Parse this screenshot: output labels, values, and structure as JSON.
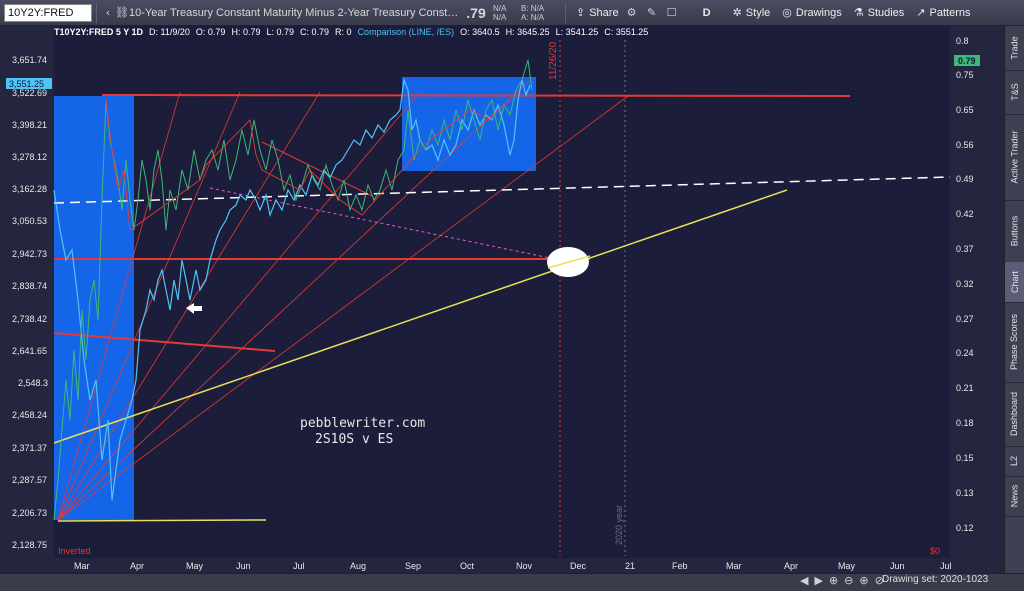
{
  "toolbar": {
    "symbol": "10Y2Y:FRED",
    "description": "10-Year Treasury Constant Maturity Minus 2-Year Treasury Constant M...",
    "last": ".79",
    "na1": "N/A",
    "na2": "N/A",
    "bid": "B: N/A",
    "ask": "A: N/A",
    "share": "Share",
    "period": "D",
    "style": "Style",
    "drawings": "Drawings",
    "studies": "Studies",
    "patterns": "Patterns"
  },
  "header": {
    "symbol": "T10Y2Y:FRED 5 Y 1D",
    "date": "D: 11/9/20",
    "open": "O: 0.79",
    "high": "H: 0.79",
    "low": "L: 0.79",
    "close": "C: 0.79",
    "r": "R: 0",
    "comparison": "Comparison (LINE, /ES)",
    "cmp_open": "O: 3640.5",
    "cmp_high": "H: 3645.25",
    "cmp_low": "L: 3541.25",
    "cmp_close": "C: 3551.25"
  },
  "colors": {
    "background": "#1b1d3a",
    "es_line": "#4fc3f7",
    "yield_line": "#3cb878",
    "box": "#1565e8",
    "trend_red": "#e53935",
    "trend_yellow": "#e8e05a",
    "dashed_white": "#ffffff"
  },
  "chart": {
    "left_axis": [
      "3,651.74",
      "3,522.69",
      "3,398.21",
      "3,278.12",
      "3,162.28",
      "3,050.53",
      "2,942.73",
      "2,838.74",
      "2,738.42",
      "2,641.65",
      "2,548.3",
      "2,458.24",
      "2,371.37",
      "2,287.57",
      "2,206.73",
      "2,128.75"
    ],
    "left_price_tag": "3,551.25",
    "right_axis": [
      "0.8",
      "0.75",
      "0.65",
      "0.56",
      "0.49",
      "0.42",
      "0.37",
      "0.32",
      "0.27",
      "0.24",
      "0.21",
      "0.18",
      "0.15",
      "0.13",
      "0.12"
    ],
    "right_price_tag": "0.79",
    "months": [
      "Mar",
      "Apr",
      "May",
      "Jun",
      "Jul",
      "Aug",
      "Sep",
      "Oct",
      "Nov",
      "Dec",
      "21",
      "Feb",
      "Mar",
      "Apr",
      "May",
      "Jun",
      "Jul"
    ],
    "date_marker": "11/26/20",
    "year_marker": "2020 year",
    "watermark_1": "pebblewriter.com",
    "watermark_2": "2S10S v ES",
    "inverted_label": "Inverted",
    "zero_label": "$0"
  },
  "sidebar": {
    "tabs": [
      "Trade",
      "T&S",
      "Active Trader",
      "Buttons",
      "Chart",
      "Phase Scores",
      "Dashboard",
      "L2",
      "News"
    ]
  },
  "bottom": {
    "drawing_set": "Drawing set: 2020-1023"
  }
}
